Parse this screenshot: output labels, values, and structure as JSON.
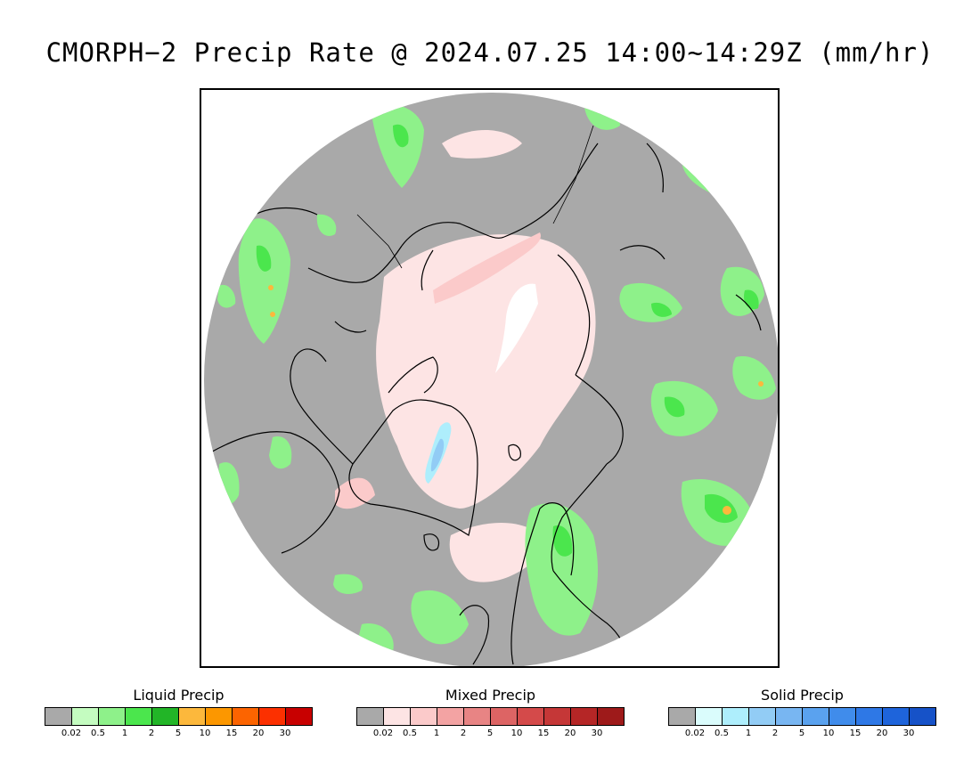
{
  "title": "CMORPH−2 Precip Rate @ 2024.07.25 14:00~14:29Z (mm/hr)",
  "map": {
    "background_color": "#a9a9a9",
    "coastline_color": "#000000"
  },
  "legends": [
    {
      "title": "Liquid Precip",
      "colors": [
        "#a9a9a9",
        "#c4fcc0",
        "#8ef18a",
        "#4be64d",
        "#22b527",
        "#fcb83c",
        "#fc9700",
        "#fc6400",
        "#fc3000",
        "#c80000"
      ],
      "tick_labels": [
        "0.02",
        "0.5",
        "1",
        "2",
        "5",
        "10",
        "15",
        "20",
        "30"
      ]
    },
    {
      "title": "Mixed Precip",
      "colors": [
        "#a9a9a9",
        "#fde4e4",
        "#fbcaca",
        "#f3a3a3",
        "#e88484",
        "#dd6464",
        "#d44a4a",
        "#c53737",
        "#b52626",
        "#9e1a1a"
      ],
      "tick_labels": [
        "0.02",
        "0.5",
        "1",
        "2",
        "5",
        "10",
        "15",
        "20",
        "30"
      ]
    },
    {
      "title": "Solid Precip",
      "colors": [
        "#a9a9a9",
        "#dafcfc",
        "#aeeefc",
        "#92ccf5",
        "#78b6f2",
        "#5aa2ef",
        "#408ceb",
        "#2e78e6",
        "#1e64db",
        "#1652c8"
      ],
      "tick_labels": [
        "0.02",
        "0.5",
        "1",
        "2",
        "5",
        "10",
        "15",
        "20",
        "30"
      ]
    }
  ]
}
